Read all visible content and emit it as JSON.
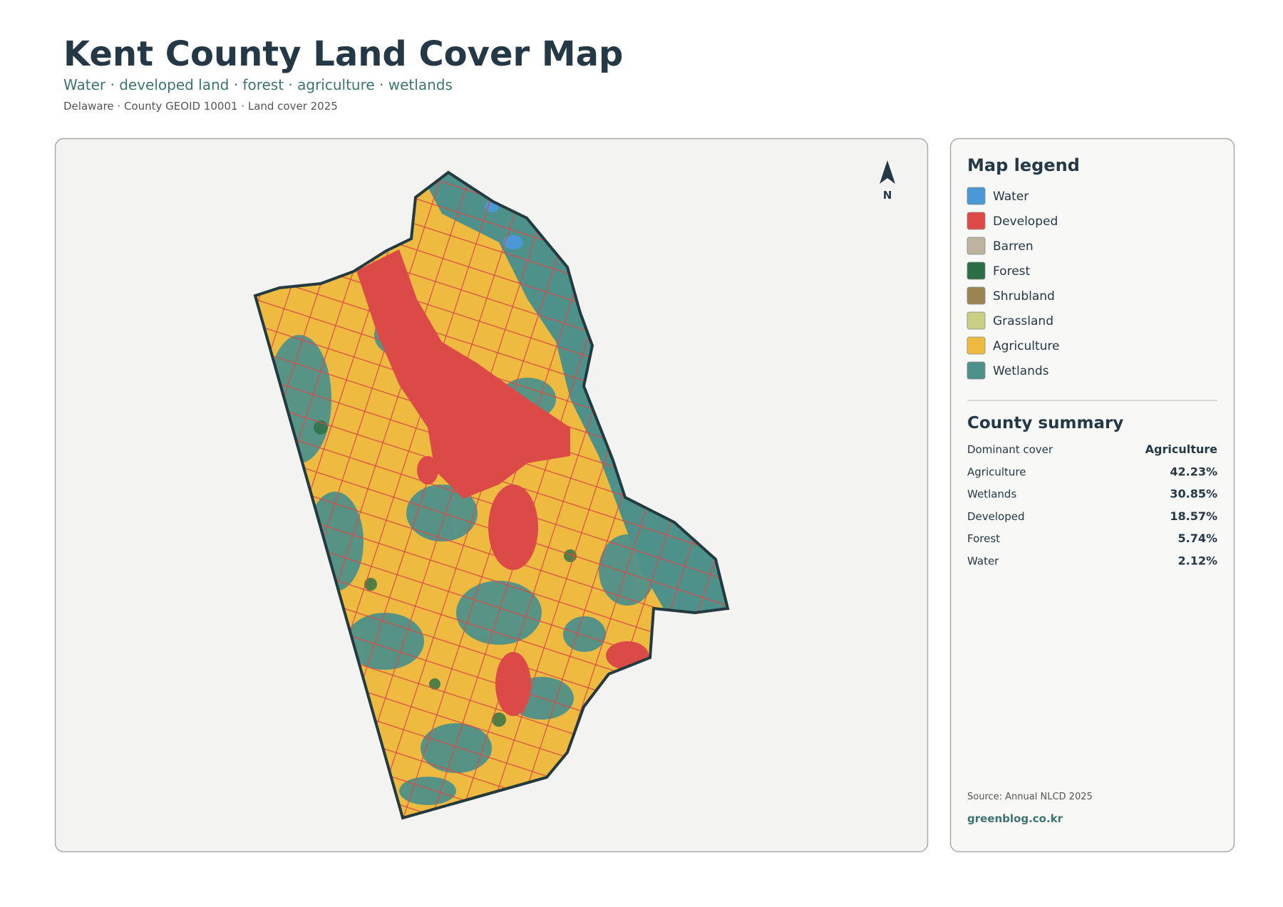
{
  "header": {
    "title": "Kent County Land Cover Map",
    "subtitle": "Water · developed land · forest · agriculture · wetlands",
    "meta": "Delaware · County GEOID 10001 · Land cover 2025"
  },
  "map": {
    "north_label": "N"
  },
  "legend": {
    "title": "Map legend",
    "items": [
      {
        "label": "Water",
        "color": "#4a98d6"
      },
      {
        "label": "Developed",
        "color": "#dc4a48"
      },
      {
        "label": "Barren",
        "color": "#bdb49f"
      },
      {
        "label": "Forest",
        "color": "#2a6e45"
      },
      {
        "label": "Shrubland",
        "color": "#9c8452"
      },
      {
        "label": "Grassland",
        "color": "#c9cf85"
      },
      {
        "label": "Agriculture",
        "color": "#eebb40"
      },
      {
        "label": "Wetlands",
        "color": "#4e918a"
      }
    ]
  },
  "summary": {
    "title": "County summary",
    "rows": [
      [
        "Dominant cover",
        "Agriculture"
      ],
      [
        "Agriculture",
        "42.23%"
      ],
      [
        "Wetlands",
        "30.85%"
      ],
      [
        "Developed",
        "18.57%"
      ],
      [
        "Forest",
        "5.74%"
      ],
      [
        "Water",
        "2.12%"
      ]
    ]
  },
  "footer": {
    "source": "Source: Annual NLCD 2025",
    "site": "greenblog.co.kr"
  }
}
